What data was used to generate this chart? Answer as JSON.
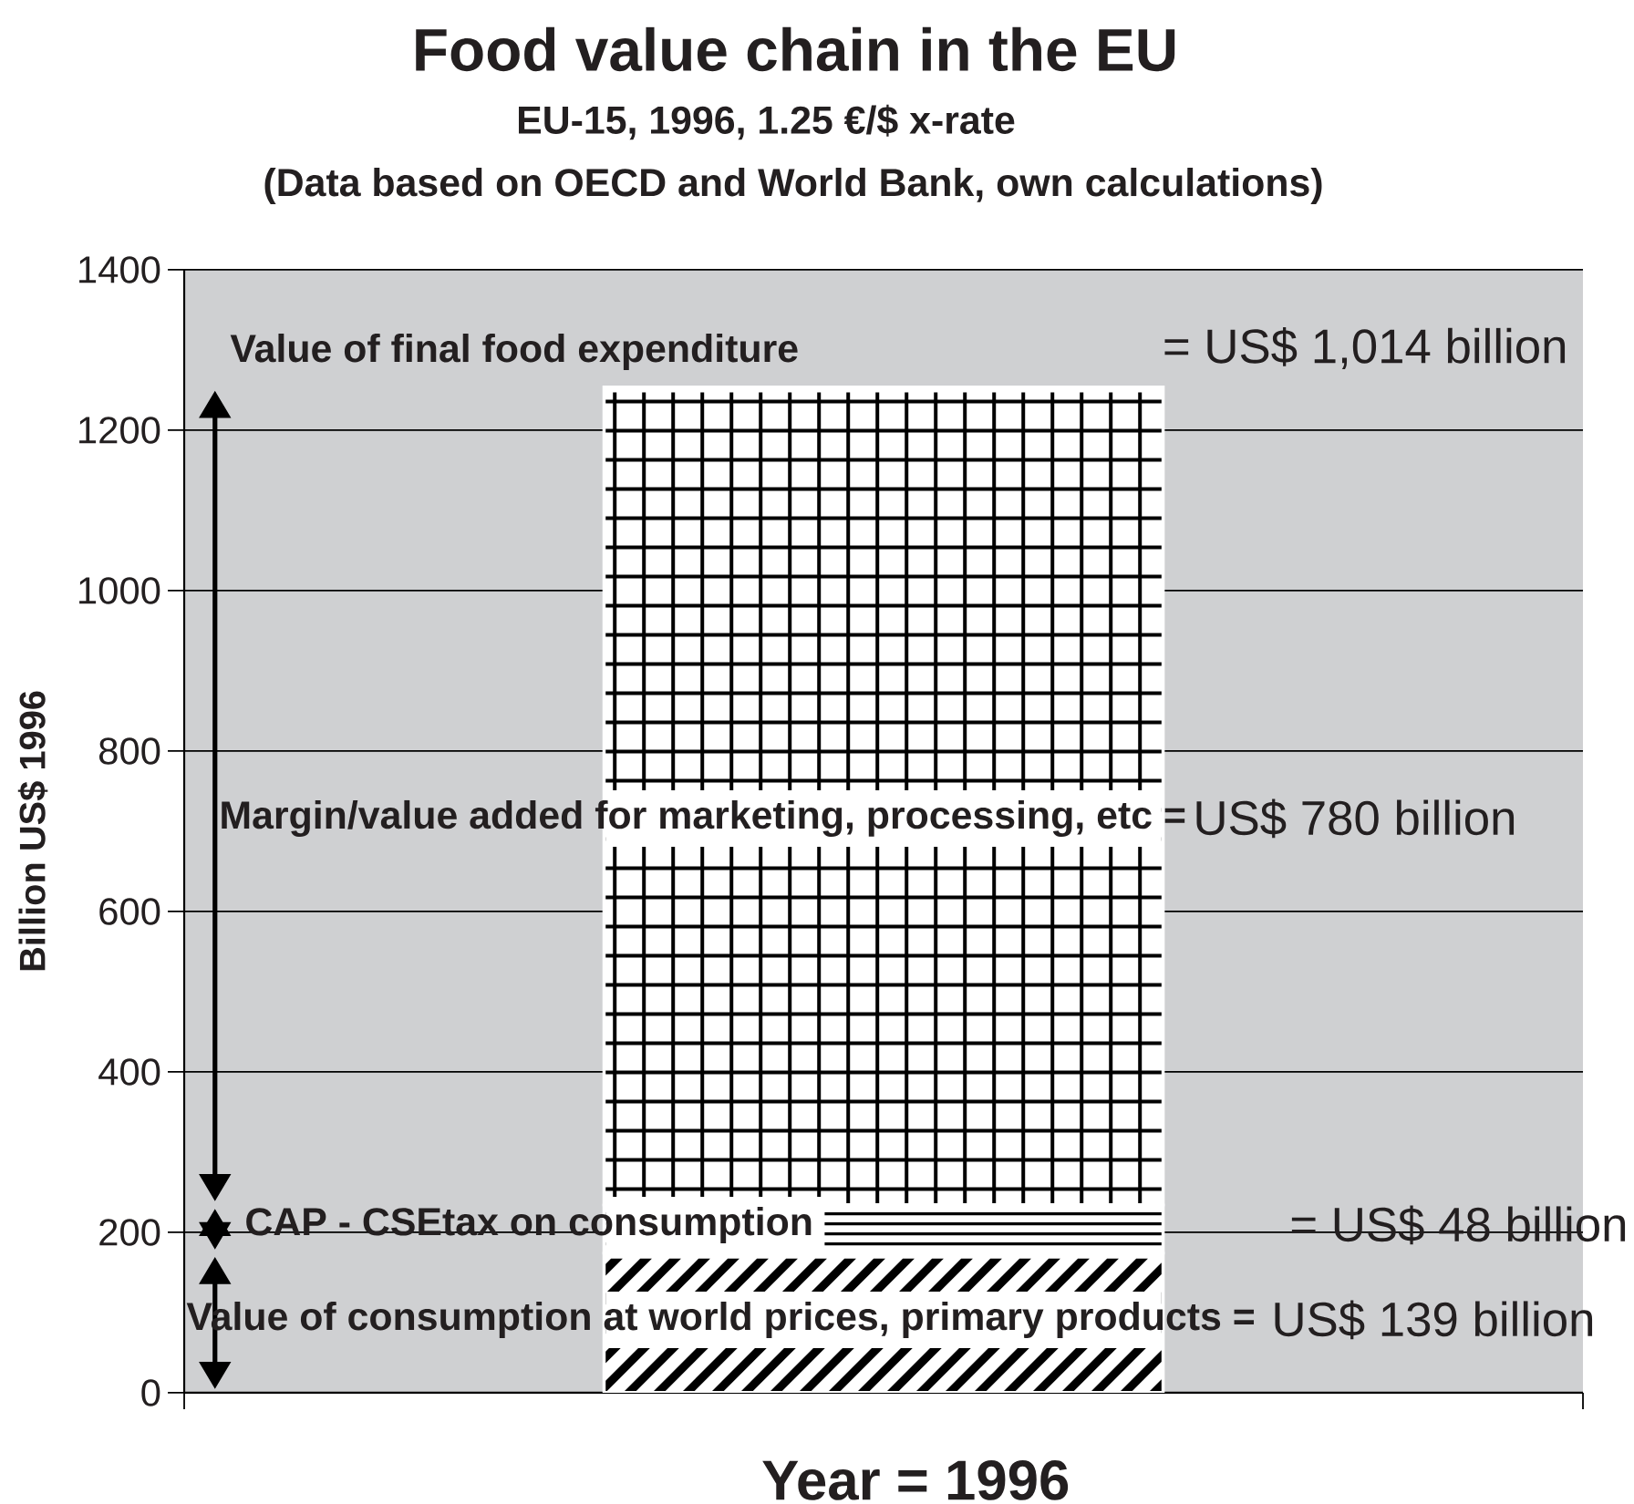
{
  "chart_data": {
    "type": "bar",
    "title": "Food value chain in the EU",
    "subtitle": "EU-15, 1996, 1.25 €/$ x-rate",
    "xlabel": "Year = 1996",
    "ylabel": "Billion US$ 1996",
    "categories": [
      null
    ],
    "stacked": true,
    "series": [
      {
        "color": "#ffffff",
        "values": [
          174
        ]
      },
      {
        "color": "#ffffff",
        "values": [
          60
        ]
      },
      {
        "color": "#ffffff",
        "values": [
          1020
        ]
      }
    ],
    "ylim": [
      0,
      1400
    ],
    "yticks": [
      0,
      200,
      400,
      600,
      800,
      1000,
      1200,
      1400
    ],
    "grid": "y",
    "annotations": [
      "(Data based on OECD and World Bank, own calculations)",
      "Value of final food expenditure",
      "= US$ 1,014 billion",
      "Margin/value added for marketing, processing, etc =",
      "US$ 780 billion",
      "CAP - CSEtax on consumption",
      "= US$ 48 billion",
      "Value of consumption at world prices, primary products =",
      "US$ 139 billion"
    ]
  }
}
